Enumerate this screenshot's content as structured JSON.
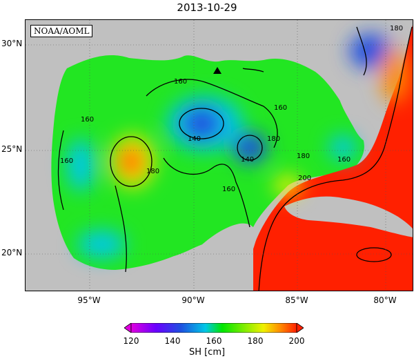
{
  "title": "2013-10-29",
  "source": "NOAA/AOML",
  "lat_labels": [
    "30°N",
    "25°N",
    "20°N"
  ],
  "lon_labels": [
    "95°W",
    "90°W",
    "85°W",
    "80°W"
  ],
  "contour_labels": [
    "160",
    "160",
    "160",
    "160",
    "160",
    "180",
    "180",
    "180",
    "140",
    "140",
    "200",
    "160",
    "180"
  ],
  "colorbar": {
    "ticks": [
      "120",
      "140",
      "160",
      "180",
      "200"
    ],
    "label": "SH [cm]"
  },
  "colors": {
    "land": "#c0c0c0",
    "green": "#00e600",
    "cyan": "#00c8e6",
    "blue": "#1e50e0",
    "yellow": "#f0f000",
    "orange": "#ff8c00",
    "red": "#ff2000"
  },
  "icons": [
    "station-marker-icon"
  ]
}
